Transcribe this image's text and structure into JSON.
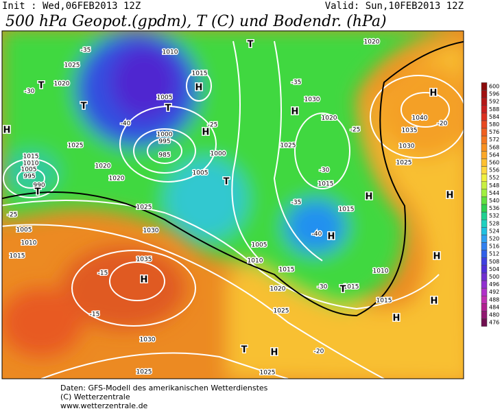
{
  "header": {
    "init": "Init : Wed,06FEB2013 12Z",
    "valid": "Valid: Sun,10FEB2013 12Z",
    "title": "500 hPa Geopot.(gpdm), T (C) und Bodendr. (hPa)"
  },
  "colorbar": {
    "ticks": [
      600,
      596,
      592,
      588,
      584,
      580,
      576,
      572,
      568,
      564,
      560,
      556,
      552,
      548,
      544,
      540,
      536,
      532,
      528,
      524,
      520,
      516,
      512,
      508,
      504,
      500,
      496,
      492,
      488,
      484,
      480,
      476
    ],
    "colors": [
      "#8b0a0a",
      "#a01010",
      "#b41818",
      "#c82020",
      "#dc3020",
      "#e84820",
      "#f06020",
      "#f47820",
      "#f89020",
      "#fca828",
      "#ffc030",
      "#ffd840",
      "#f0f040",
      "#c8f040",
      "#a0f040",
      "#60e040",
      "#30d050",
      "#20d090",
      "#20d0c0",
      "#20c0e0",
      "#30a0f0",
      "#3080f0",
      "#3060e8",
      "#4040e0",
      "#5030d8",
      "#7030d0",
      "#9030d0",
      "#b030c8",
      "#c030b0",
      "#b02090",
      "#901870",
      "#701050"
    ]
  },
  "map_labels": [
    "1025",
    "1020",
    "T",
    "T",
    "H",
    "1025",
    "1015",
    "1010",
    "1005",
    "995",
    "990",
    "T",
    "1020",
    "1020",
    "1025",
    "1005",
    "1010",
    "1015",
    "1030",
    "1035",
    "H",
    "1030",
    "1025",
    "1010",
    "1015",
    "H",
    "1005",
    "T",
    "1000",
    "995",
    "985",
    "H",
    "1000",
    "1005",
    "T",
    "T",
    "1030",
    "H",
    "1020",
    "1025",
    "1015",
    "H",
    "1015",
    "H",
    "1005",
    "1010",
    "1015",
    "1015",
    "T",
    "1010",
    "1020",
    "1025",
    "1015",
    "H",
    "1020",
    "H",
    "1040",
    "1035",
    "1030",
    "1025",
    "H",
    "H",
    "H",
    "T",
    "H",
    "1025",
    "-35",
    "-30",
    "-40",
    "-25",
    "-35",
    "-30",
    "-25",
    "-40",
    "-35",
    "-30",
    "-20",
    "-15",
    "-15",
    "-20",
    "-25"
  ],
  "footer": {
    "lines": [
      "Daten: GFS-Modell des amerikanischen Wetterdienstes",
      "(C) Wetterzentrale",
      "www.wetterzentrale.de"
    ]
  }
}
